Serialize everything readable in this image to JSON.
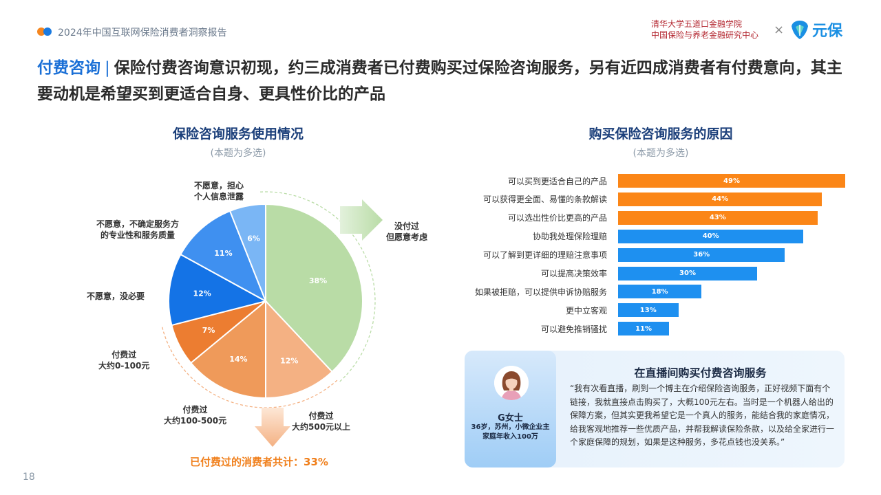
{
  "header": {
    "report_title": "2024年中国互联网保险消费者洞察报告",
    "org_line1": "清华大学五道口金融学院",
    "org_line2": "中国保险与养老金融研究中心",
    "times": "×",
    "logo_text": "元保"
  },
  "headline": {
    "tag": "付费咨询",
    "separator": "|",
    "text": "保险付费咨询意识初现，约三成消费者已付费购买过保险咨询服务，另有近四成消费者有付费意向，其主要动机是希望买到更适合自身、更具性价比的产品"
  },
  "left_section": {
    "title": "保险咨询服务使用情况",
    "subtitle": "(本题为多选)",
    "total_label": "已付费过的消费者共计：33%"
  },
  "right_section": {
    "title": "购买保险咨询服务的原因",
    "subtitle": "(本题为多选)"
  },
  "colors": {
    "green": "#b9dca6",
    "orange_light": "#f4b183",
    "orange_mid": "#ef9a5a",
    "orange_dark": "#ec7d31",
    "blue_dark": "#1473e6",
    "blue_mid": "#3f90f0",
    "blue_light": "#7ab6f5",
    "bar_orange": "#fb8617",
    "bar_blue": "#1e90f0"
  },
  "chart_data": [
    {
      "type": "pie",
      "title": "保险咨询服务使用情况",
      "slices": [
        {
          "label": "没付过 但愿意考虑",
          "value": 38,
          "display": "38%"
        },
        {
          "label": "付费过 大约500元以上",
          "value": 12,
          "display": "12%"
        },
        {
          "label": "付费过 大约100-500元",
          "value": 14,
          "display": "14%"
        },
        {
          "label": "付费过 大约0-100元",
          "value": 7,
          "display": "7%"
        },
        {
          "label": "不愿意，没必要",
          "value": 12,
          "display": "12%"
        },
        {
          "label": "不愿意，不确定服务方的专业性和服务质量",
          "value": 11,
          "display": "11%"
        },
        {
          "label": "不愿意，担心个人信息泄露",
          "value": 6,
          "display": "6%"
        }
      ]
    },
    {
      "type": "bar",
      "orientation": "horizontal",
      "title": "购买保险咨询服务的原因",
      "categories": [
        "可以买到更适合自己的产品",
        "可以获得更全面、易懂的条款解读",
        "可以选出性价比更高的产品",
        "协助我处理保险理赔",
        "可以了解到更详细的理赔注意事项",
        "可以提高决策效率",
        "如果被拒赔，可以提供申诉协赔服务",
        "更中立客观",
        "可以避免推销骚扰"
      ],
      "values": [
        49,
        44,
        43,
        40,
        36,
        30,
        18,
        13,
        11
      ],
      "labels": [
        "49%",
        "44%",
        "43%",
        "40%",
        "36%",
        "30%",
        "18%",
        "13%",
        "11%"
      ],
      "highlight_top": 3,
      "xlim": [
        0,
        49
      ]
    }
  ],
  "pie_labels": {
    "l_privacy_1": "不愿意，担心",
    "l_privacy_2": "个人信息泄露",
    "l_quality_1": "不愿意，不确定服务方",
    "l_quality_2": "的专业性和服务质量",
    "l_no_need": "不愿意，没必要",
    "l_0_100_1": "付费过",
    "l_0_100_2": "大约0-100元",
    "l_100_500_1": "付费过",
    "l_100_500_2": "大约100-500元",
    "l_500_1": "付费过",
    "l_500_2": "大约500元以上",
    "l_consider_1": "没付过",
    "l_consider_2": "但愿意考虑"
  },
  "card": {
    "title": "在直播间购买付费咨询服务",
    "persona_name": "G女士",
    "persona_info_1": "36岁，苏州，小微企业主",
    "persona_info_2": "家庭年收入100万",
    "quote": "“我有次看直播，刷到一个博主在介绍保险咨询服务，正好视频下面有个链接，我就直接点击购买了，大概100元左右。当时是一个机器人给出的保障方案，但其实更我希望它是一个真人的服务，能结合我的家庭情况，给我客观地推荐一些优质产品，并帮我解读保险条款，以及给全家进行一个家庭保障的规划，如果是这种服务，多花点钱也没关系。”"
  },
  "page_number": "18"
}
